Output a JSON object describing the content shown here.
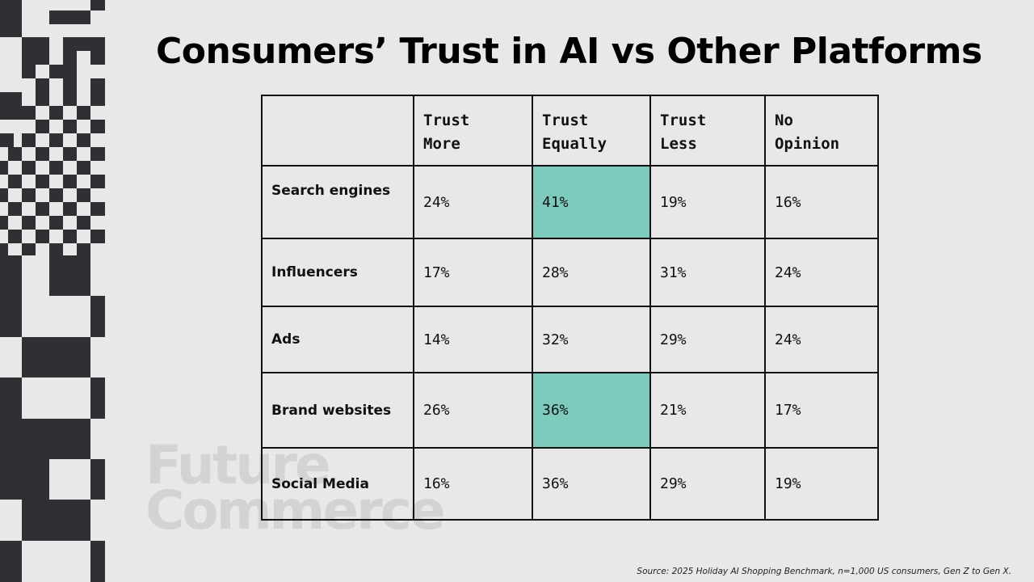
{
  "title": "Consumers’ Trust in AI vs Other Platforms",
  "watermark": {
    "line1": "Future",
    "line2": "Commerce"
  },
  "table": {
    "columns": [
      {
        "line1": "Trust",
        "line2": "More"
      },
      {
        "line1": "Trust",
        "line2": "Equally"
      },
      {
        "line1": "Trust",
        "line2": "Less"
      },
      {
        "line1": "No",
        "line2": "Opinion"
      }
    ],
    "rows": [
      {
        "label": "Search engines",
        "values": [
          "24%",
          "41%",
          "19%",
          "16%"
        ]
      },
      {
        "label": "Influencers",
        "values": [
          "17%",
          "28%",
          "31%",
          "24%"
        ]
      },
      {
        "label": "Ads",
        "values": [
          "14%",
          "32%",
          "29%",
          "24%"
        ]
      },
      {
        "label": "Brand websites",
        "values": [
          "26%",
          "36%",
          "21%",
          "17%"
        ]
      },
      {
        "label": "Social Media",
        "values": [
          "16%",
          "36%",
          "29%",
          "19%"
        ]
      }
    ]
  },
  "source": "Source: 2025 Holiday AI Shopping Benchmark, n=1,000 US consumers, Gen Z to Gen X.",
  "colors": {
    "background": "#e8e8e8",
    "highlight": "#7ccbbd",
    "decoration": "#2f3034"
  }
}
